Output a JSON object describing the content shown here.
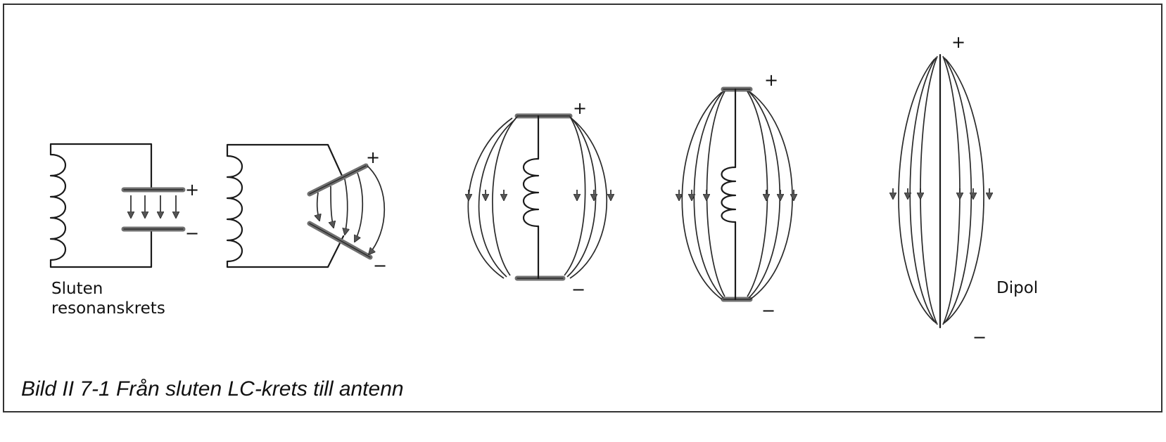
{
  "caption": "Bild II 7-1  Från sluten LC-krets till antenn",
  "label_closed_line1": "Sluten",
  "label_closed_line2": "resonanskrets",
  "label_dipole": "Dipol",
  "sign_plus": "+",
  "sign_minus": "−"
}
